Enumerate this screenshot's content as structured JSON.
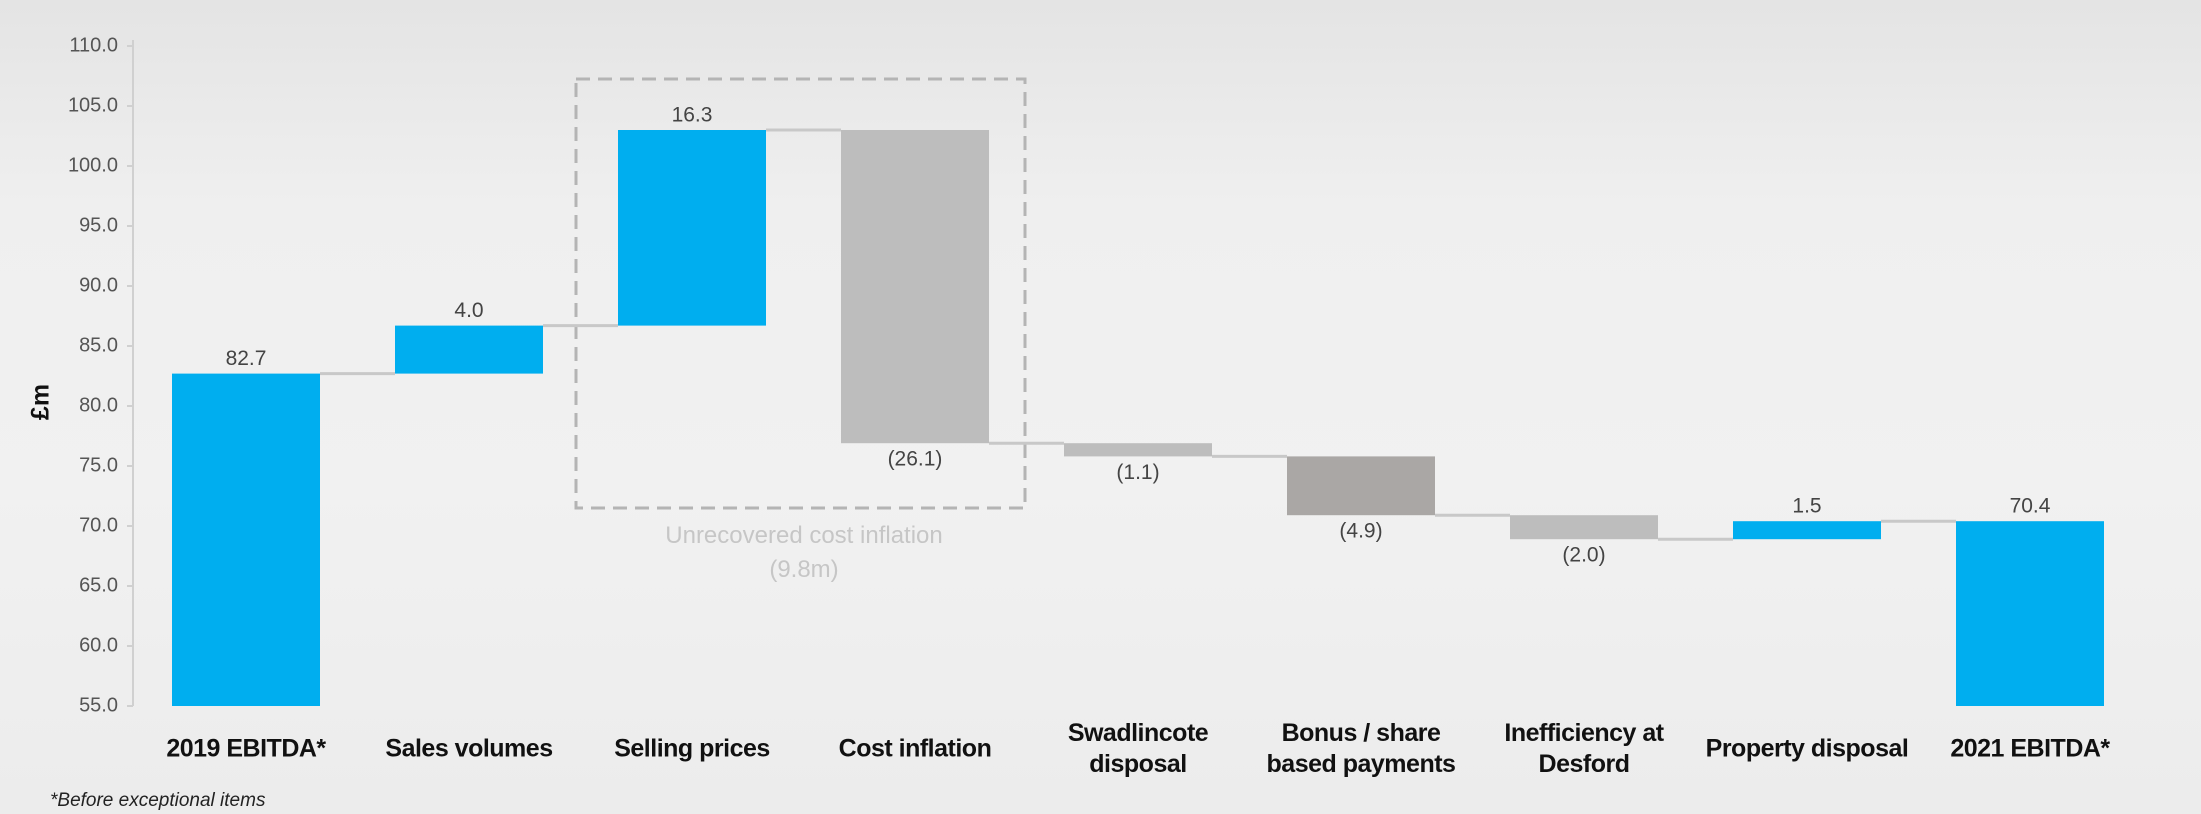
{
  "chart_data": {
    "type": "waterfall",
    "y_label": "£m",
    "categories": [
      "2019 EBITDA*",
      "Sales volumes",
      "Selling prices",
      "Cost inflation",
      "Swadlincote\ndisposal",
      "Bonus / share\nbased payments",
      "Inefficiency at\nDesford",
      "Property disposal",
      "2021 EBITDA*"
    ],
    "values": [
      82.7,
      4.0,
      16.3,
      -26.1,
      -1.1,
      -4.9,
      -2.0,
      1.5,
      70.4
    ],
    "value_labels": [
      "82.7",
      "4.0",
      "16.3",
      "(26.1)",
      "(1.1)",
      "(4.9)",
      "(2.0)",
      "1.5",
      "70.4"
    ],
    "measures": [
      "total",
      "relative",
      "relative",
      "relative",
      "relative",
      "relative",
      "relative",
      "relative",
      "total"
    ],
    "colors": [
      "#00aeef",
      "#00aeef",
      "#00aeef",
      "#bdbdbd",
      "#bdbdbd",
      "#aaa7a5",
      "#bdbdbd",
      "#00aeef",
      "#00aeef"
    ],
    "ylim": [
      55,
      110
    ],
    "yticks": [
      {
        "value": 55,
        "label": "55.0"
      },
      {
        "value": 60,
        "label": "60.0"
      },
      {
        "value": 65,
        "label": "65.0"
      },
      {
        "value": 70,
        "label": "70.0"
      },
      {
        "value": 75,
        "label": "75.0"
      },
      {
        "value": 80,
        "label": "80.0"
      },
      {
        "value": 85,
        "label": "85.0"
      },
      {
        "value": 90,
        "label": "90.0"
      },
      {
        "value": 95,
        "label": "95.0"
      },
      {
        "value": 100,
        "label": "100.0"
      },
      {
        "value": 105,
        "label": "105.0"
      },
      {
        "value": 110,
        "label": "110.0"
      }
    ],
    "annotation": "Unrecovered cost inflation\n(9.8m)",
    "footnote": "*Before exceptional items"
  }
}
